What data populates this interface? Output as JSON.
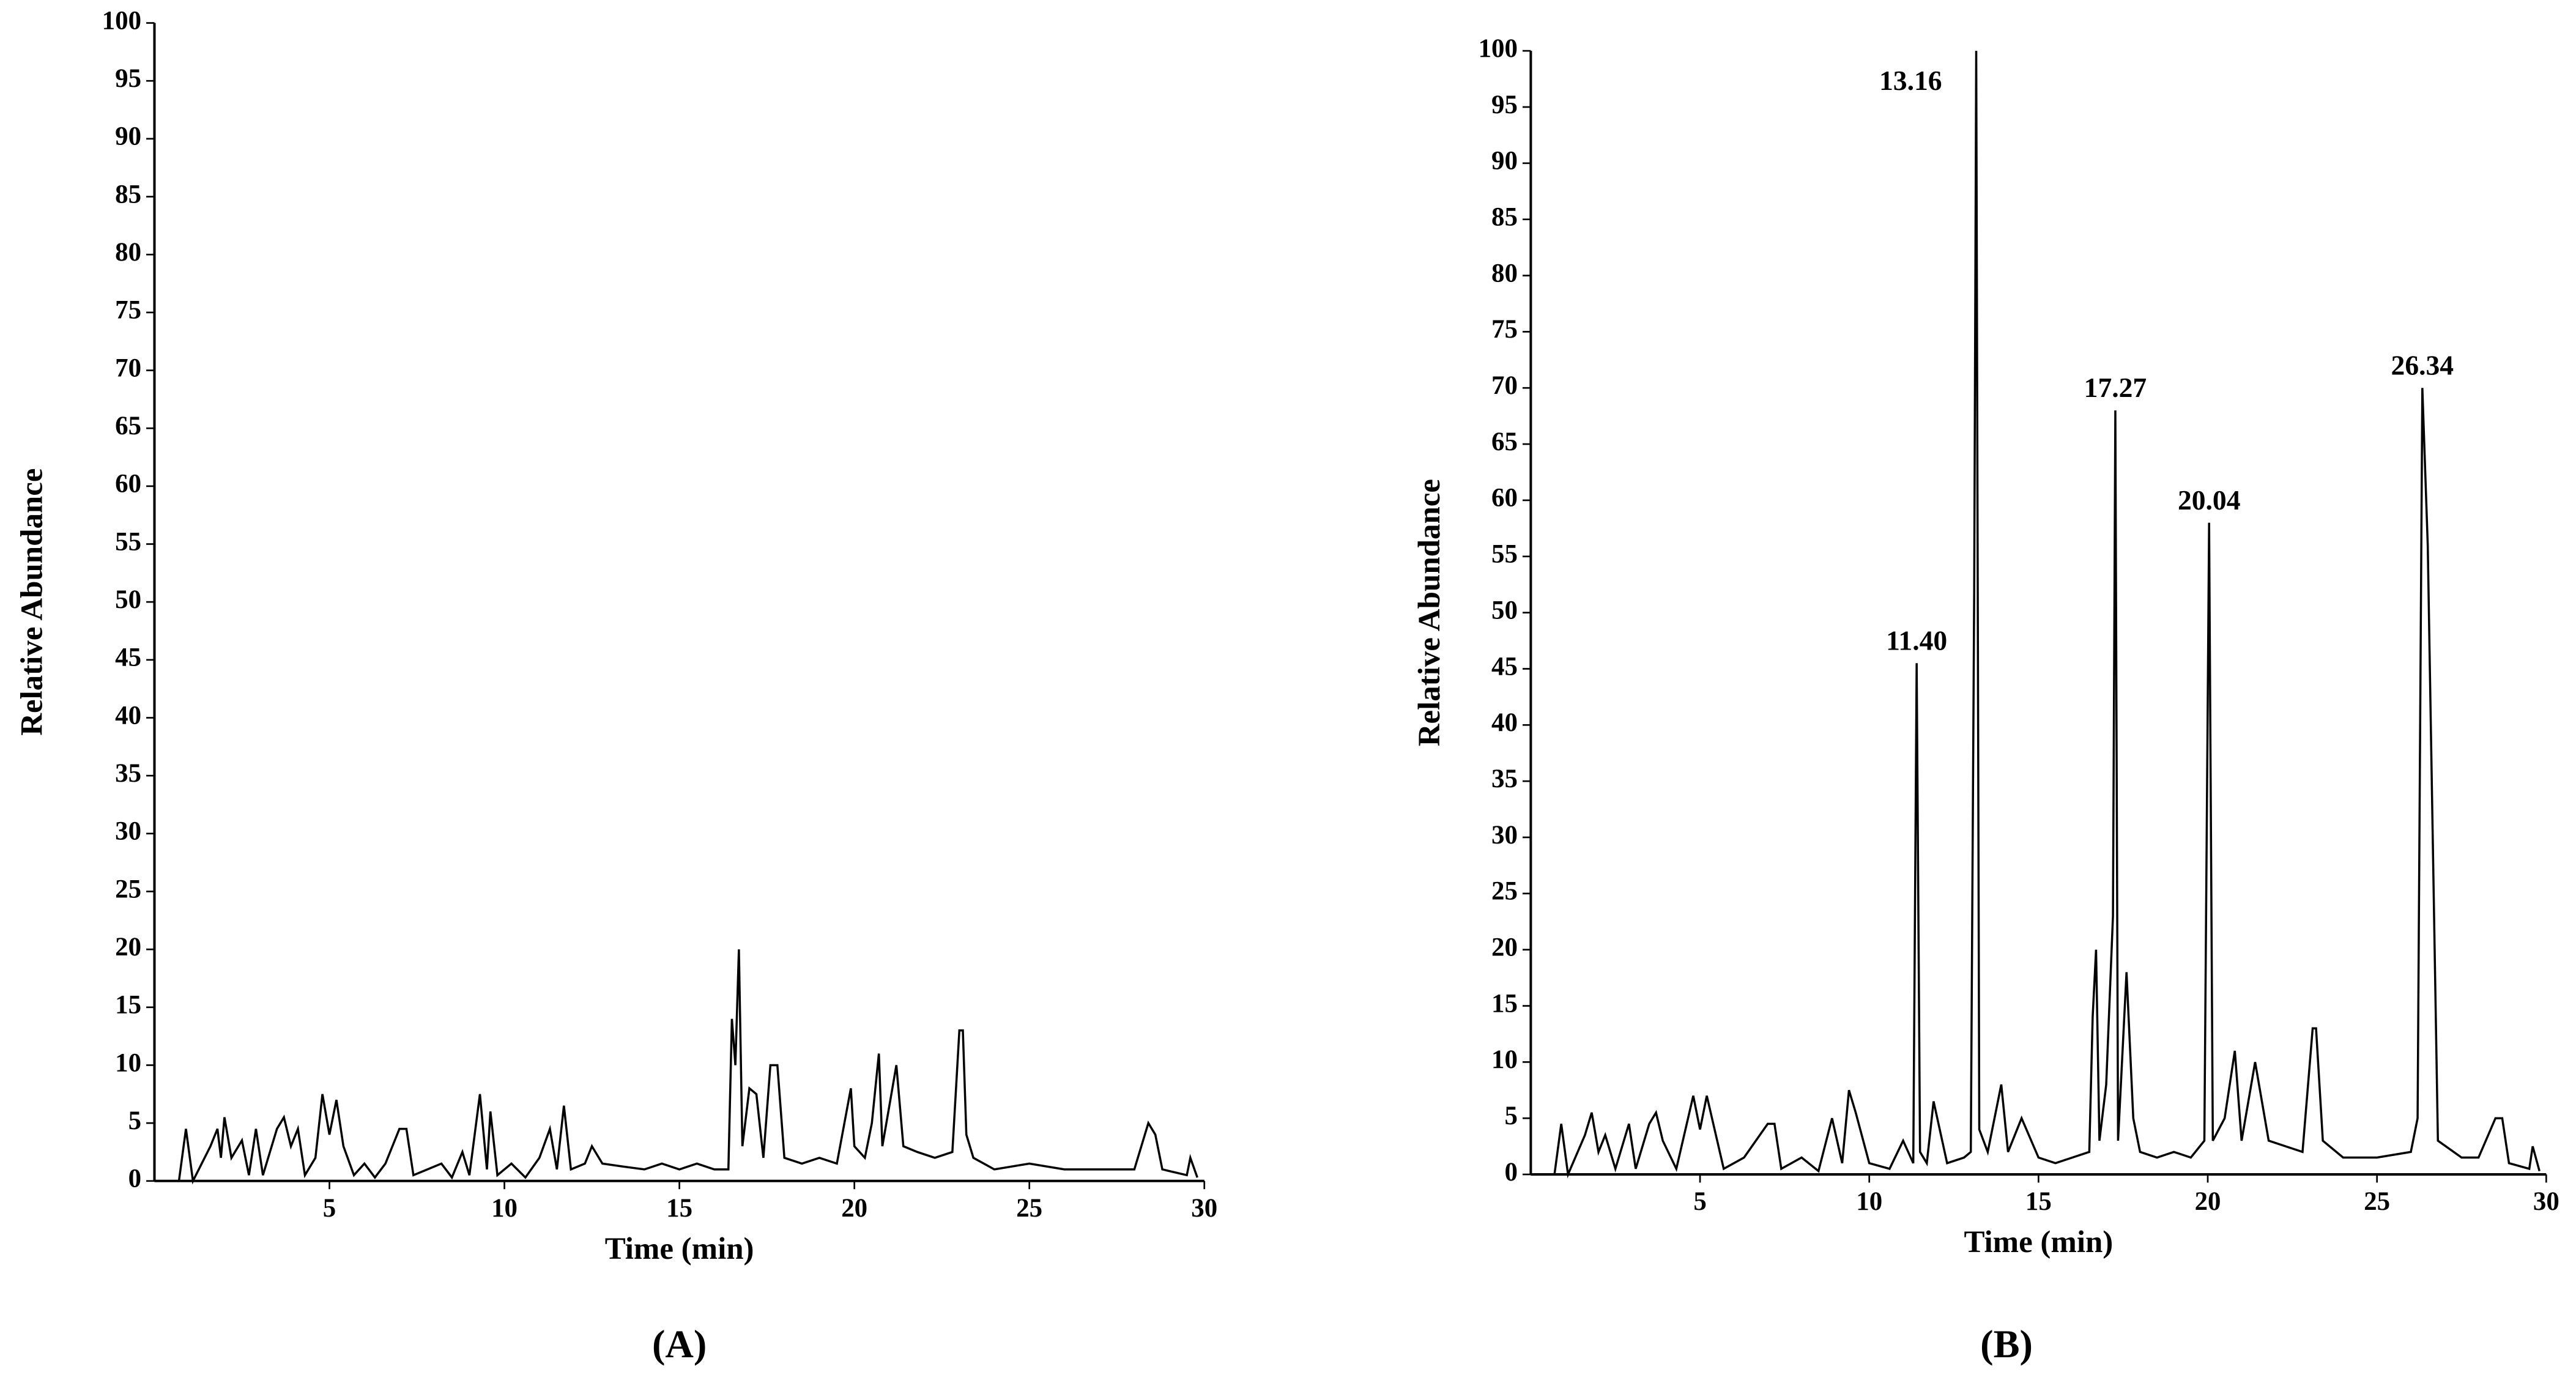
{
  "chart_data": [
    {
      "type": "line",
      "caption": "(A)",
      "xlabel": "Time (min)",
      "ylabel": "Relative Abundance",
      "color": "#000000",
      "xlim": [
        0,
        30
      ],
      "ylim": [
        0,
        100
      ],
      "xticks": [
        5,
        10,
        15,
        20,
        25,
        30
      ],
      "yticks": [
        0,
        5,
        10,
        15,
        20,
        25,
        30,
        35,
        40,
        45,
        50,
        55,
        60,
        65,
        70,
        75,
        80,
        85,
        90,
        95,
        100
      ],
      "x": [
        0.7,
        0.9,
        1.1,
        1.6,
        1.8,
        1.9,
        2.0,
        2.2,
        2.5,
        2.7,
        2.9,
        3.1,
        3.5,
        3.7,
        3.9,
        4.1,
        4.3,
        4.6,
        4.8,
        5.0,
        5.2,
        5.4,
        5.7,
        6.0,
        6.3,
        6.6,
        7.0,
        7.2,
        7.4,
        7.8,
        8.2,
        8.5,
        8.8,
        9.0,
        9.3,
        9.5,
        9.6,
        9.8,
        10.2,
        10.6,
        11.0,
        11.3,
        11.5,
        11.7,
        11.9,
        12.3,
        12.5,
        12.8,
        13.5,
        14.0,
        14.5,
        15.0,
        15.5,
        16.0,
        16.4,
        16.5,
        16.6,
        16.7,
        16.8,
        17.0,
        17.2,
        17.4,
        17.6,
        17.8,
        18.0,
        18.5,
        19.0,
        19.5,
        19.9,
        20.0,
        20.3,
        20.5,
        20.7,
        20.8,
        21.2,
        21.4,
        21.8,
        22.3,
        22.8,
        23.0,
        23.1,
        23.2,
        23.4,
        24.0,
        25.0,
        26.0,
        27.0,
        28.0,
        28.4,
        28.6,
        28.8,
        29.5,
        29.6,
        29.8
      ],
      "values": [
        0,
        4.5,
        0,
        3,
        4.5,
        2,
        5.5,
        2,
        3.5,
        0.5,
        4.5,
        0.5,
        4.5,
        5.5,
        3,
        4.5,
        0.5,
        2,
        7.5,
        4,
        7,
        3,
        0.5,
        1.5,
        0.3,
        1.5,
        4.5,
        4.5,
        0.5,
        1,
        1.5,
        0.3,
        2.5,
        0.5,
        7.5,
        1,
        6,
        0.5,
        1.5,
        0.3,
        2,
        4.5,
        1,
        6.5,
        1,
        1.5,
        3,
        1.5,
        1.2,
        1,
        1.5,
        1,
        1.5,
        1,
        1,
        14,
        10,
        20,
        3,
        8,
        7.5,
        2,
        10,
        10,
        2,
        1.5,
        2,
        1.5,
        8,
        3,
        2,
        5,
        11,
        3,
        10,
        3,
        2.5,
        2,
        2.5,
        13,
        13,
        4,
        2,
        1,
        1.5,
        1,
        1,
        1,
        5,
        4,
        1,
        0.5,
        2,
        0.3
      ]
    },
    {
      "type": "line",
      "caption": "(B)",
      "xlabel": "Time (min)",
      "ylabel": "Relative Abundance",
      "color": "#000000",
      "xlim": [
        0,
        30
      ],
      "ylim": [
        0,
        100
      ],
      "xticks": [
        5,
        10,
        15,
        20,
        25,
        30
      ],
      "yticks": [
        0,
        5,
        10,
        15,
        20,
        25,
        30,
        35,
        40,
        45,
        50,
        55,
        60,
        65,
        70,
        75,
        80,
        85,
        90,
        95,
        100
      ],
      "annotations": [
        {
          "text": "11.40",
          "x": 11.4,
          "y": 45.5
        },
        {
          "text": "13.16",
          "x": 13.16,
          "y": 100
        },
        {
          "text": "17.27",
          "x": 17.27,
          "y": 68
        },
        {
          "text": "20.04",
          "x": 20.04,
          "y": 58
        },
        {
          "text": "26.34",
          "x": 26.34,
          "y": 70
        }
      ],
      "x": [
        0.7,
        0.9,
        1.1,
        1.6,
        1.8,
        2.0,
        2.2,
        2.5,
        2.9,
        3.1,
        3.5,
        3.7,
        3.9,
        4.3,
        4.8,
        5.0,
        5.2,
        5.7,
        6.3,
        7.0,
        7.2,
        7.4,
        8.0,
        8.5,
        8.9,
        9.2,
        9.4,
        9.6,
        10.0,
        10.6,
        11.0,
        11.3,
        11.4,
        11.5,
        11.7,
        11.9,
        12.3,
        12.8,
        13.0,
        13.1,
        13.16,
        13.25,
        13.5,
        13.9,
        14.1,
        14.5,
        15.0,
        15.5,
        16.0,
        16.5,
        16.6,
        16.7,
        16.8,
        17.0,
        17.2,
        17.27,
        17.35,
        17.6,
        17.8,
        18.0,
        18.5,
        19.0,
        19.5,
        19.9,
        20.04,
        20.15,
        20.5,
        20.8,
        21.0,
        21.4,
        21.8,
        22.3,
        22.8,
        23.1,
        23.2,
        23.4,
        24.0,
        25.0,
        26.0,
        26.2,
        26.34,
        26.5,
        26.8,
        27.5,
        28.0,
        28.5,
        28.7,
        28.9,
        29.5,
        29.6,
        29.8
      ],
      "values": [
        0,
        4.5,
        0,
        3.5,
        5.5,
        2,
        3.5,
        0.5,
        4.5,
        0.5,
        4.5,
        5.5,
        3,
        0.5,
        7,
        4,
        7,
        0.5,
        1.5,
        4.5,
        4.5,
        0.5,
        1.5,
        0.3,
        5,
        1,
        7.5,
        5.5,
        1,
        0.5,
        3,
        1,
        45.5,
        2,
        1,
        6.5,
        1,
        1.5,
        2,
        52,
        100,
        4,
        2,
        8,
        2,
        5,
        1.5,
        1,
        1.5,
        2,
        14,
        20,
        3,
        8,
        23,
        68,
        3,
        18,
        5,
        2,
        1.5,
        2,
        1.5,
        3,
        58,
        3,
        5,
        11,
        3,
        10,
        3,
        2.5,
        2,
        13,
        13,
        3,
        1.5,
        1.5,
        2,
        5,
        70,
        56,
        3,
        1.5,
        1.5,
        5,
        5,
        1,
        0.5,
        2.5,
        0.3
      ]
    }
  ]
}
